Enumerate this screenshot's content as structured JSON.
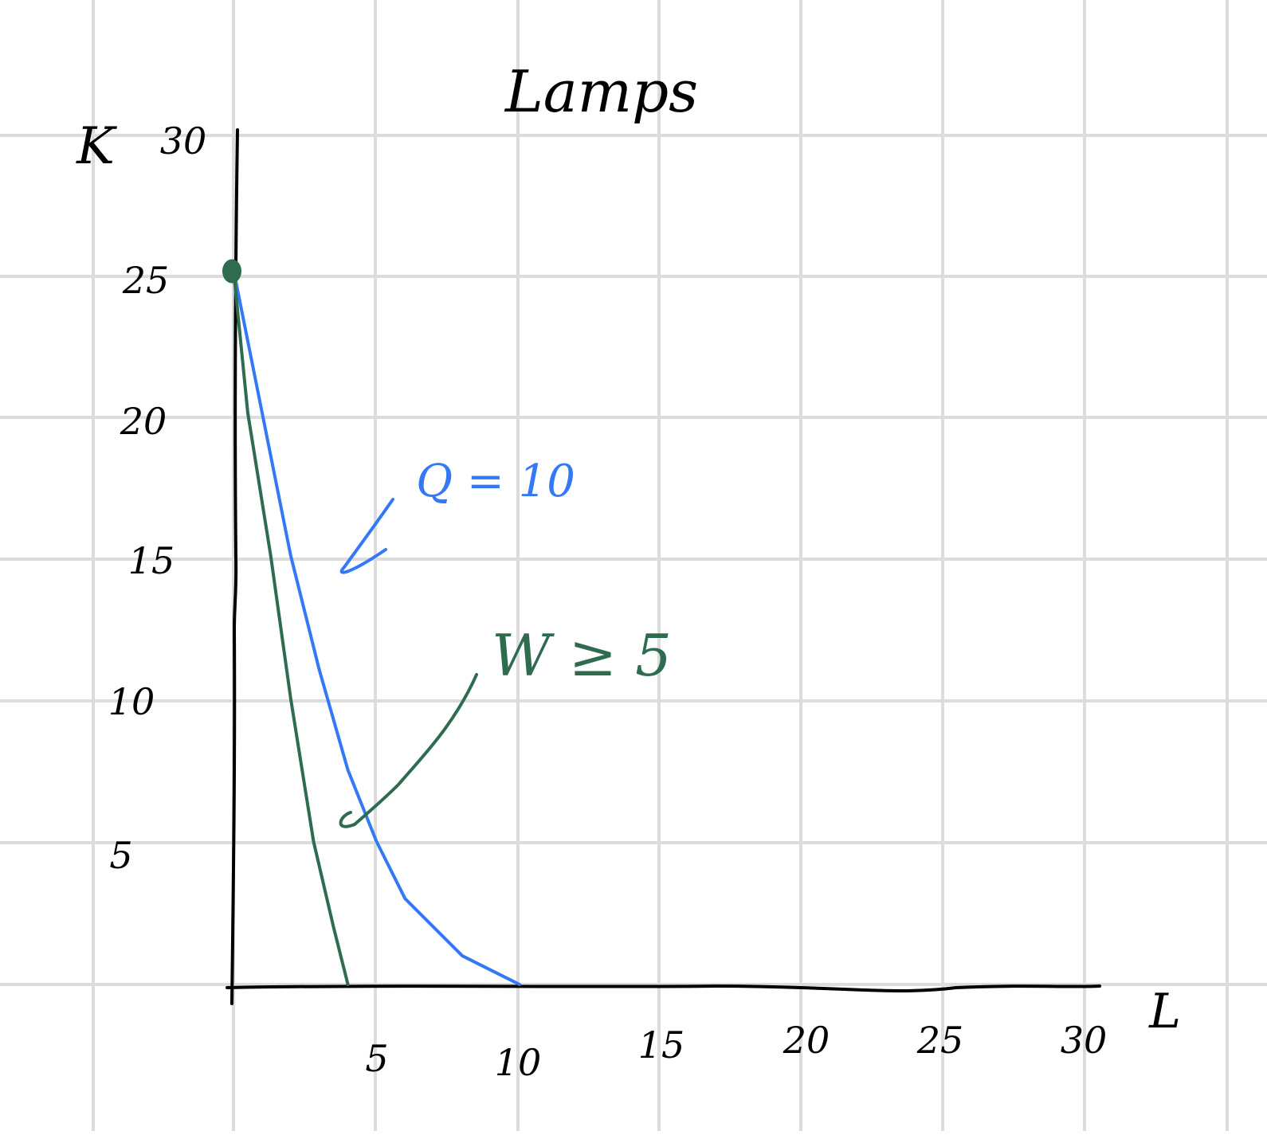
{
  "chart_data": {
    "type": "line",
    "title": "Lamps",
    "xlabel": "L",
    "ylabel": "K",
    "xlim": [
      0,
      30
    ],
    "ylim": [
      0,
      30
    ],
    "x_ticks": [
      "5",
      "10",
      "15",
      "20",
      "25",
      "30"
    ],
    "y_ticks": [
      "5",
      "10",
      "15",
      "20",
      "25",
      "30"
    ],
    "grid": true,
    "series": [
      {
        "name": "Q = 10",
        "color": "#3478f6",
        "points": [
          [
            0,
            25
          ],
          [
            1,
            20
          ],
          [
            2,
            15
          ],
          [
            3,
            11
          ],
          [
            4,
            7.5
          ],
          [
            5,
            5
          ],
          [
            6,
            3
          ],
          [
            8,
            1
          ],
          [
            10,
            0
          ]
        ]
      },
      {
        "name": "W ≥ 5",
        "color": "#2e6b4f",
        "points": [
          [
            0,
            25
          ],
          [
            0.5,
            20
          ],
          [
            1.3,
            15
          ],
          [
            2,
            10
          ],
          [
            2.8,
            5
          ],
          [
            3.5,
            2
          ],
          [
            4,
            0
          ]
        ]
      }
    ],
    "annotations": [
      {
        "text": "Q = 10",
        "series": 0,
        "color": "#3478f6"
      },
      {
        "text": "W ≥ 5",
        "series": 1,
        "color": "#2e6b4f"
      }
    ],
    "marker": {
      "x": 0,
      "y": 25,
      "color": "#2e6b4f"
    },
    "grid_color": "#dcdcdc",
    "axis_color": "#000000"
  }
}
